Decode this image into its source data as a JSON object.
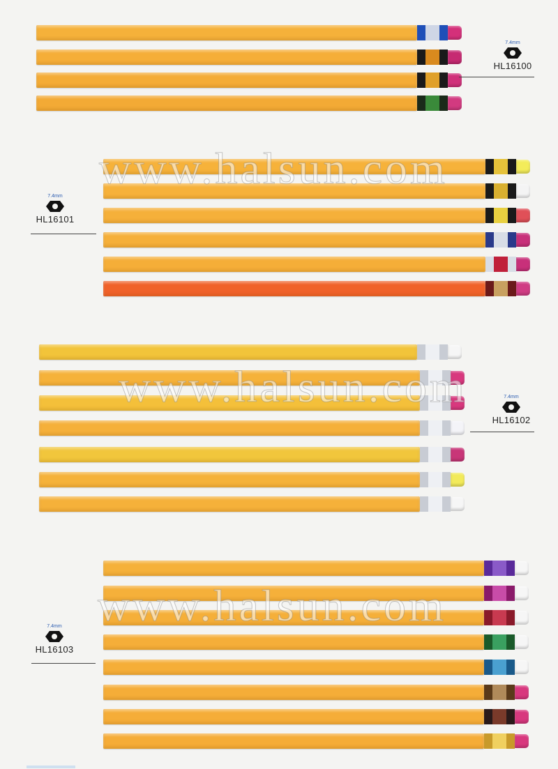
{
  "watermark": "www.halsun.com",
  "groups": [
    {
      "code": "HL16100",
      "mm": "7.4mm",
      "pencils": [
        {
          "body": "#f5b13a",
          "ferrule": [
            "#1f4fb8",
            "#cfd6e6",
            "#1f4fb8"
          ],
          "eraser": "#d4307a"
        },
        {
          "body": "#f5ae38",
          "ferrule": [
            "#1a1a1a",
            "#d98a1e",
            "#1a1a1a"
          ],
          "eraser": "#c62a72"
        },
        {
          "body": "#f4ac36",
          "ferrule": [
            "#1a1a1a",
            "#e0a02a",
            "#1a1a1a"
          ],
          "eraser": "#d0307a"
        },
        {
          "body": "#f3aa35",
          "ferrule": [
            "#1a2a1a",
            "#3a8a3a",
            "#1a2a1a"
          ],
          "eraser": "#d23a80"
        }
      ]
    },
    {
      "code": "HL16101",
      "mm": "7.4mm",
      "pencils": [
        {
          "body": "#f6b23a",
          "ferrule": [
            "#1a1a1a",
            "#e6c23a",
            "#1a1a1a"
          ],
          "eraser": "#f3ec5a"
        },
        {
          "body": "#f6b13a",
          "ferrule": [
            "#1a1a1a",
            "#d9b030",
            "#1a1a1a"
          ],
          "eraser": "#f4f4f4"
        },
        {
          "body": "#f5b03a",
          "ferrule": [
            "#1a1a1a",
            "#e8d040",
            "#1a1a1a"
          ],
          "eraser": "#e05058"
        },
        {
          "body": "#f5af39",
          "ferrule": [
            "#2a3a8a",
            "#d8dde6",
            "#2a3a8a"
          ],
          "eraser": "#c8307a"
        },
        {
          "body": "#f5ae38",
          "ferrule": [
            "#d8dde6",
            "#c0203a",
            "#d8dde6"
          ],
          "eraser": "#c8307a"
        },
        {
          "body": "#f0622a",
          "ferrule": [
            "#6a1a1a",
            "#c8a060",
            "#6a1a1a"
          ],
          "eraser": "#d03c84"
        }
      ]
    },
    {
      "code": "HL16102",
      "mm": "7.4mm",
      "pencils": [
        {
          "body": "#f2c43a",
          "ferrule": [
            "#c8ccd4",
            "#eef0f4",
            "#c8ccd4"
          ],
          "eraser": "#f6f6f6"
        },
        {
          "body": "#f5b23a",
          "ferrule": [
            "#c8ccd4",
            "#eef0f4",
            "#c8ccd4"
          ],
          "eraser": "#d8387e"
        },
        {
          "body": "#f4c03a",
          "ferrule": [
            "#c8ccd4",
            "#eef0f4",
            "#c8ccd4"
          ],
          "eraser": "#d8387e"
        },
        {
          "body": "#f5b03a",
          "ferrule": [
            "#c8ccd4",
            "#eef0f4",
            "#c8ccd4"
          ],
          "eraser": "#f4f4f8"
        },
        {
          "body": "#f1c63c",
          "ferrule": [
            "#c8ccd4",
            "#eef0f4",
            "#c8ccd4"
          ],
          "eraser": "#c83678"
        },
        {
          "body": "#f5b23a",
          "ferrule": [
            "#c8ccd4",
            "#eef0f4",
            "#c8ccd4"
          ],
          "eraser": "#f2ea5a"
        },
        {
          "body": "#f5b13a",
          "ferrule": [
            "#c8ccd4",
            "#eef0f4",
            "#c8ccd4"
          ],
          "eraser": "#f6f6f6"
        }
      ]
    },
    {
      "code": "HL16103",
      "mm": "7.4mm",
      "pencils": [
        {
          "body": "#f5b13a",
          "ferrule": [
            "#5a2a9a",
            "#8a5ac8",
            "#5a2a9a"
          ],
          "eraser": "#f6f6f6"
        },
        {
          "body": "#f5b03a",
          "ferrule": [
            "#8a1a6a",
            "#c84ca8",
            "#8a1a6a"
          ],
          "eraser": "#f6f6f6"
        },
        {
          "body": "#f5af39",
          "ferrule": [
            "#8a1a2a",
            "#c83a50",
            "#8a1a2a"
          ],
          "eraser": "#f6f6f6"
        },
        {
          "body": "#f5ae39",
          "ferrule": [
            "#1a5a2a",
            "#3aa060",
            "#1a5a2a"
          ],
          "eraser": "#f6f6f6"
        },
        {
          "body": "#f5ae38",
          "ferrule": [
            "#1a5a8a",
            "#4aa0d0",
            "#1a5a8a"
          ],
          "eraser": "#f6f6f6"
        },
        {
          "body": "#f5ad38",
          "ferrule": [
            "#5a3a1a",
            "#b08a5a",
            "#5a3a1a"
          ],
          "eraser": "#d8387e"
        },
        {
          "body": "#f5ad38",
          "ferrule": [
            "#2a1a1a",
            "#7a3a2a",
            "#2a1a1a"
          ],
          "eraser": "#d8387e"
        },
        {
          "body": "#f5ac37",
          "ferrule": [
            "#c89a2a",
            "#f0d060",
            "#c89a2a"
          ],
          "eraser": "#d8387e"
        }
      ]
    }
  ]
}
